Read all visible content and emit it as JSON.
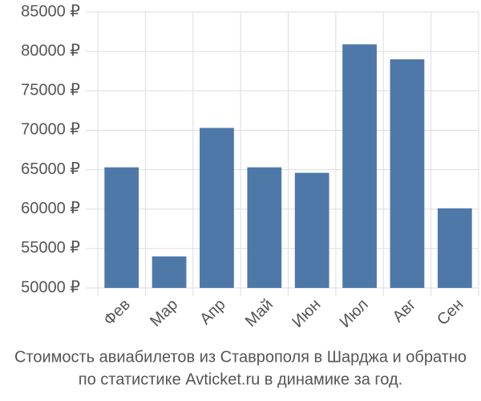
{
  "chart_data": {
    "type": "bar",
    "title": "Стоимость авиабилетов из Ставрополя в Шарджа и обратно",
    "subtitle": "по статистике Avticket.ru в динамике за год.",
    "categories": [
      "Фев",
      "Мар",
      "Апр",
      "Май",
      "Июн",
      "Июл",
      "Авг",
      "Сен"
    ],
    "values": [
      65300,
      54000,
      70300,
      65300,
      64600,
      80900,
      79000,
      60100
    ],
    "color": "#4e78a8",
    "ylim": [
      50000,
      85000
    ],
    "yticks": [
      {
        "value": 50000,
        "label": "50000 ₽"
      },
      {
        "value": 55000,
        "label": "55000 ₽"
      },
      {
        "value": 60000,
        "label": "60000 ₽"
      },
      {
        "value": 65000,
        "label": "65000 ₽"
      },
      {
        "value": 70000,
        "label": "70000 ₽"
      },
      {
        "value": 75000,
        "label": "75000 ₽"
      },
      {
        "value": 80000,
        "label": "80000 ₽"
      },
      {
        "value": 85000,
        "label": "85000 ₽"
      }
    ],
    "grid": true
  }
}
